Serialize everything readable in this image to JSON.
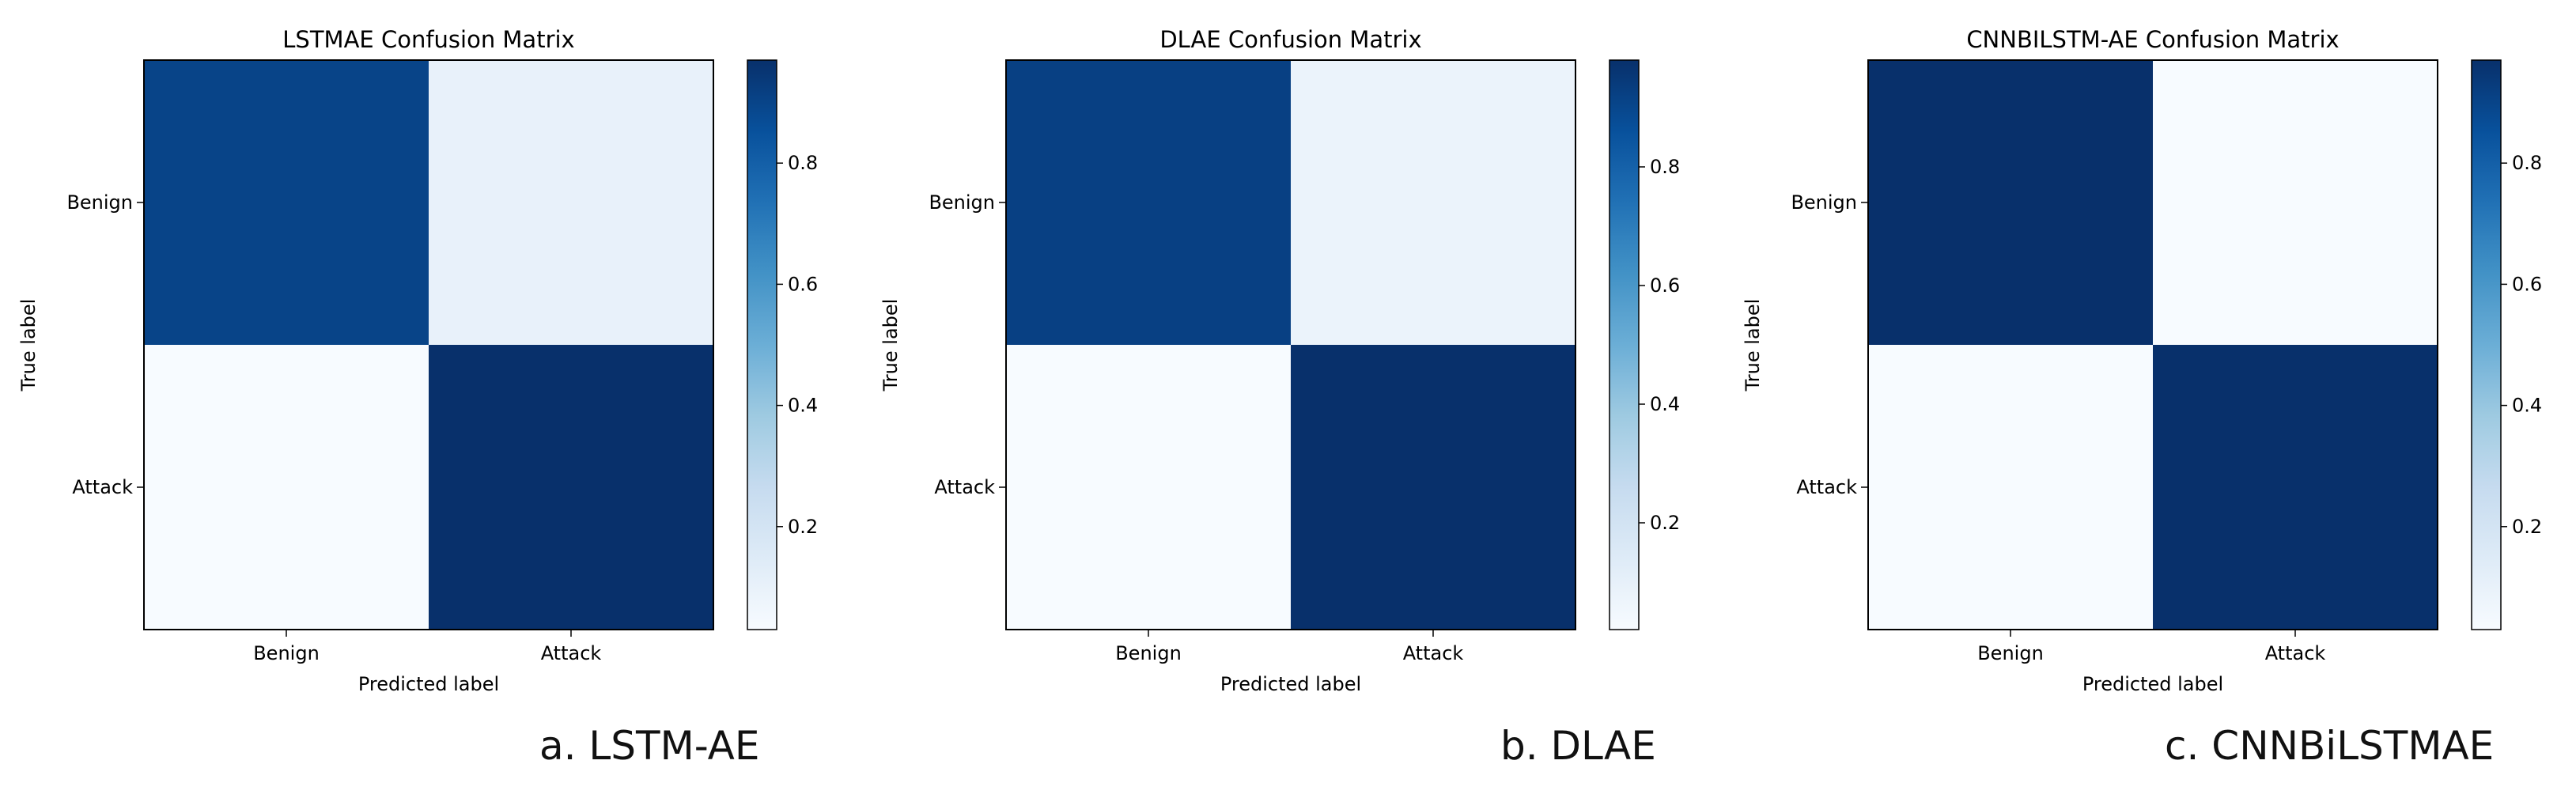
{
  "chart_data": [
    {
      "type": "heatmap",
      "title": "LSTMAE Confusion Matrix",
      "xlabel": "Predicted label",
      "ylabel": "True label",
      "x_categories": [
        "Benign",
        "Attack"
      ],
      "y_categories": [
        "Benign",
        "Attack"
      ],
      "values": [
        [
          0.9,
          0.1
        ],
        [
          0.03,
          0.97
        ]
      ],
      "colormap": "Blues",
      "colorbar": {
        "range": [
          0.03,
          0.97
        ],
        "ticks": [
          "0.2",
          "0.4",
          "0.6",
          "0.8"
        ]
      },
      "caption": "a. LSTM-AE"
    },
    {
      "type": "heatmap",
      "title": "DLAE Confusion Matrix",
      "xlabel": "Predicted label",
      "ylabel": "True label",
      "x_categories": [
        "Benign",
        "Attack"
      ],
      "y_categories": [
        "Benign",
        "Attack"
      ],
      "values": [
        [
          0.92,
          0.08
        ],
        [
          0.02,
          0.98
        ]
      ],
      "colormap": "Blues",
      "colorbar": {
        "range": [
          0.02,
          0.98
        ],
        "ticks": [
          "0.2",
          "0.4",
          "0.6",
          "0.8"
        ]
      },
      "caption": "b. DLAE"
    },
    {
      "type": "heatmap",
      "title": "CNNBILSTM-AE Confusion Matrix",
      "xlabel": "Predicted label",
      "ylabel": "True label",
      "x_categories": [
        "Benign",
        "Attack"
      ],
      "y_categories": [
        "Benign",
        "Attack"
      ],
      "values": [
        [
          0.97,
          0.03
        ],
        [
          0.03,
          0.97
        ]
      ],
      "colormap": "Blues",
      "colorbar": {
        "range": [
          0.03,
          0.97
        ],
        "ticks": [
          "0.2",
          "0.4",
          "0.6",
          "0.8"
        ]
      },
      "caption": "c. CNNBiLSTMAE"
    }
  ],
  "colors": {
    "blues_low": "#f7fbff",
    "blues_high": "#08306b",
    "frame": "#000000"
  }
}
